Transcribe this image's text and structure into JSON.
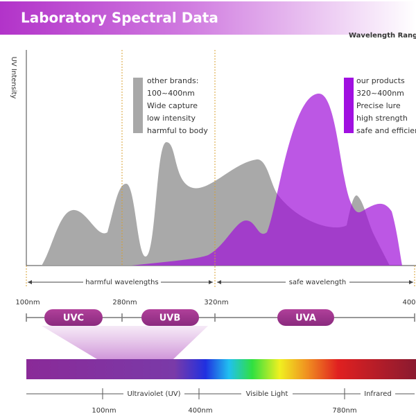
{
  "header": {
    "title": "Laboratory Spectral Data",
    "range_label": "Wavelength Range"
  },
  "chart": {
    "y_label": "UV Intensity",
    "other_brands": [
      "other brands:",
      "100~400nm",
      "Wide capture",
      "low intensity",
      "harmful to body"
    ],
    "our_products": [
      "our products",
      "320~400nm",
      "Precise lure",
      "high strength",
      "safe and efficient"
    ],
    "harmful": "harmful wavelengths",
    "safe": "safe wavelength",
    "ticks": [
      "100nm",
      "280nm",
      "320nm",
      "400"
    ],
    "bands": [
      "UVC",
      "UVB",
      "UVA"
    ]
  },
  "spectrum": {
    "regions": [
      "Ultraviolet (UV)",
      "Visible Light",
      "Infrared"
    ],
    "ticks": [
      "100nm",
      "400nm",
      "780nm"
    ]
  }
}
